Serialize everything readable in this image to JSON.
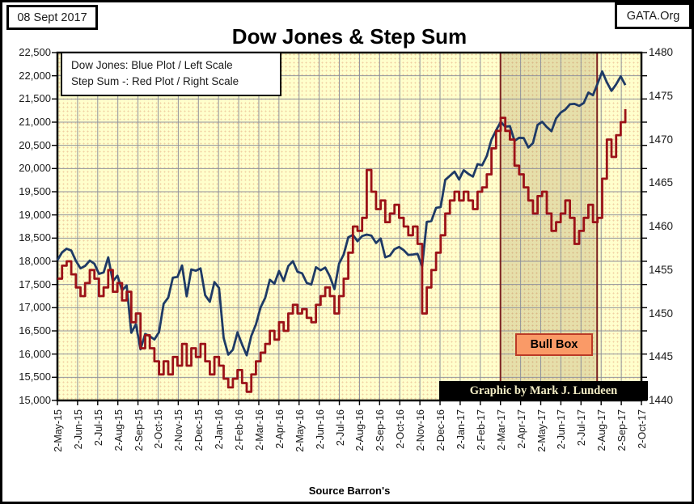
{
  "header": {
    "date_badge": "08 Sept 2017",
    "site_badge": "GATA.Org",
    "title": "Dow Jones & Step Sum"
  },
  "legend": {
    "line1": "Dow Jones: Blue Plot / Left Scale",
    "line2": "Step Sum -: Red Plot / Right Scale"
  },
  "annotations": {
    "bull_box_label": "Bull Box",
    "credit": "Graphic by Mark J. Lundeen",
    "source": "Source Barron's"
  },
  "colors": {
    "dow_jones_line": "#1E3A66",
    "step_sum_line": "#9C1218",
    "plot_background": "#FFFFCC",
    "gridline": "#90929C",
    "highlight_fill": "rgba(130,95,35,0.20)",
    "highlight_border": "#7B2020",
    "bull_box_fill": "#FA9A67",
    "bull_box_border": "#BB3A26",
    "credit_background": "#000000",
    "credit_text": "#F2ECC4"
  },
  "chart_data": {
    "type": "line",
    "title": "Dow Jones & Step Sum",
    "grid": true,
    "legend_position": "top-left",
    "x_tick_labels": [
      "2-May-15",
      "2-Jun-15",
      "2-Jul-15",
      "2-Aug-15",
      "2-Sep-15",
      "2-Oct-15",
      "2-Nov-15",
      "2-Dec-15",
      "2-Jan-16",
      "2-Feb-16",
      "2-Mar-16",
      "2-Apr-16",
      "2-May-16",
      "2-Jun-16",
      "2-Jul-16",
      "2-Aug-16",
      "2-Sep-16",
      "2-Oct-16",
      "2-Nov-16",
      "2-Dec-16",
      "2-Jan-17",
      "2-Feb-17",
      "2-Mar-17",
      "2-Apr-17",
      "2-May-17",
      "2-Jun-17",
      "2-Jul-17",
      "2-Aug-17",
      "2-Sep-17",
      "2-Oct-17"
    ],
    "left_axis": {
      "min": 15000,
      "max": 22500,
      "step": 500,
      "labels": [
        "22,500",
        "22,000",
        "21,500",
        "21,000",
        "20,500",
        "20,000",
        "19,500",
        "19,000",
        "18,500",
        "18,000",
        "17,500",
        "17,000",
        "16,500",
        "16,000",
        "15,500",
        "15,000"
      ]
    },
    "right_axis": {
      "min": 1440,
      "max": 1480,
      "step": 5,
      "labels": [
        "1480",
        "1475",
        "1470",
        "1465",
        "1460",
        "1455",
        "1450",
        "1445",
        "1440"
      ]
    },
    "highlight_region": {
      "label": "Bull Box",
      "x_start_label": "2-Mar-17",
      "x_end_label": "2-Aug-17"
    },
    "series": [
      {
        "name": "Dow Jones",
        "axis": "left",
        "color": "#1E3A66",
        "step": false,
        "values": [
          18024,
          18191,
          18272,
          18232,
          18011,
          17849,
          17899,
          18016,
          17947,
          17730,
          17760,
          18086,
          17569,
          17690,
          17373,
          17477,
          16460,
          16643,
          16102,
          16433,
          16385,
          16315,
          16472,
          17084,
          17216,
          17647,
          17664,
          17910,
          17245,
          17824,
          17798,
          17848,
          17265,
          17128,
          17552,
          17425,
          16346,
          15988,
          16094,
          16466,
          16205,
          15974,
          16392,
          16640,
          17007,
          17213,
          17602,
          17516,
          17793,
          17577,
          17897,
          18004,
          17774,
          17741,
          17535,
          17500,
          17873,
          17807,
          17865,
          17675,
          17400,
          17949,
          18147,
          18517,
          18571,
          18432,
          18544,
          18576,
          18553,
          18395,
          18492,
          18085,
          18123,
          18261,
          18308,
          18240,
          18138,
          18146,
          18161,
          17888,
          18848,
          18868,
          19152,
          19170,
          19757,
          19843,
          19934,
          19763,
          19964,
          19886,
          19827,
          20094,
          20071,
          20269,
          20624,
          20822,
          21006,
          20903,
          20915,
          20597,
          20663,
          20656,
          20453,
          20548,
          20941,
          21007,
          20896,
          20805,
          21080,
          21206,
          21272,
          21385,
          21395,
          21350,
          21414,
          21638,
          21580,
          21830,
          22093,
          21858,
          21675,
          21814,
          21988,
          21798
        ]
      },
      {
        "name": "Step Sum",
        "axis": "right",
        "color": "#9C1218",
        "step": true,
        "values": [
          1454,
          1455.5,
          1456,
          1454.5,
          1453,
          1452,
          1453.5,
          1455,
          1454,
          1452,
          1453,
          1455,
          1452.5,
          1453.5,
          1451.5,
          1452.5,
          1449,
          1450,
          1446,
          1447.5,
          1446,
          1444.5,
          1443,
          1444.5,
          1443,
          1445,
          1444,
          1446.5,
          1444,
          1446,
          1445,
          1446.5,
          1444.5,
          1443,
          1445,
          1444,
          1442.5,
          1441.5,
          1442.5,
          1443.5,
          1442,
          1441,
          1443,
          1444.5,
          1445.5,
          1446.5,
          1448,
          1447,
          1449,
          1448,
          1450,
          1451,
          1450,
          1450.5,
          1449.5,
          1449,
          1451,
          1452,
          1453,
          1452,
          1450,
          1452,
          1454,
          1457,
          1460,
          1459.5,
          1461,
          1466.5,
          1464,
          1462,
          1463,
          1460.5,
          1461.5,
          1462.5,
          1461,
          1460,
          1459,
          1460,
          1458,
          1450,
          1453,
          1455,
          1457,
          1459,
          1461.5,
          1463,
          1464,
          1463,
          1464,
          1463,
          1462,
          1464,
          1464.5,
          1466,
          1469,
          1471,
          1472.5,
          1471,
          1470,
          1467,
          1466,
          1464.5,
          1463,
          1461.5,
          1463.5,
          1464,
          1461.5,
          1459.5,
          1460.5,
          1461.5,
          1463,
          1461,
          1458,
          1459.5,
          1461,
          1462.5,
          1460.5,
          1461,
          1465.5,
          1470,
          1468,
          1470.5,
          1472,
          1473.5
        ]
      }
    ]
  }
}
